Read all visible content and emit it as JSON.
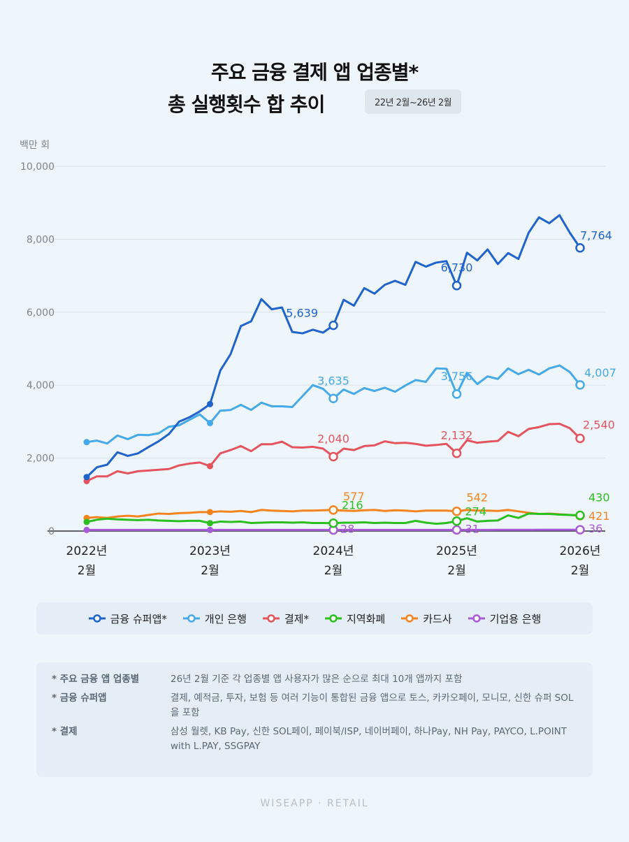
{
  "title": {
    "line1": "주요 금융 결제 앱 업종별*",
    "line2": "총 실행횟수 합 추이",
    "period": "22년 2월~26년 2월"
  },
  "brand": "WISEAPP · RETAIL",
  "notes": [
    {
      "key": "* 주요 금융 앱 업종별",
      "value": "26년 2월 기준 각 업종별 앱 사용자가 많은 순으로 최대 10개 앱까지 포함"
    },
    {
      "key": "* 금융 슈퍼앱",
      "value": "결제, 예적금, 투자, 보험 등 여러 기능이 통합된 금융 앱으로 토스, 카카오페이, 모니모, 신한 슈퍼 SOL을 포함"
    },
    {
      "key": "* 결제",
      "value": "삼성 월렛, KB Pay, 신한 SOL페이, 페이북/ISP, 네이버페이, 하나Pay, NH Pay, PAYCO, L.POINT with L.PAY, SSGPAY"
    }
  ],
  "chart_data": {
    "type": "line",
    "ylabel": "백만 회",
    "ylim": [
      0,
      10000
    ],
    "yticks": [
      "0",
      "2,000",
      "4,000",
      "6,000",
      "8,000",
      "10,000"
    ],
    "x_labels": [
      {
        "year": "2022년",
        "month": "2월",
        "index": 0
      },
      {
        "year": "2023년",
        "month": "2월",
        "index": 12
      },
      {
        "year": "2024년",
        "month": "2월",
        "index": 24
      },
      {
        "year": "2025년",
        "month": "2월",
        "index": 36
      },
      {
        "year": "2026년",
        "month": "2월",
        "index": 48
      }
    ],
    "series": [
      {
        "name": "금융 슈퍼앱*",
        "color": "#1f63cc",
        "values": [
          1480,
          1750,
          1820,
          2160,
          2060,
          2130,
          2300,
          2460,
          2660,
          3000,
          3120,
          3280,
          3480,
          4400,
          4850,
          5620,
          5750,
          6360,
          6080,
          6130,
          5460,
          5420,
          5520,
          5440,
          5639,
          6340,
          6180,
          6660,
          6510,
          6750,
          6860,
          6750,
          7380,
          7250,
          7360,
          7400,
          6730,
          7630,
          7420,
          7720,
          7320,
          7620,
          7460,
          8180,
          8600,
          8440,
          8660,
          8180,
          7764
        ],
        "labels": [
          {
            "index": 24,
            "text": "5,639"
          },
          {
            "index": 36,
            "text": "6,730"
          },
          {
            "index": 48,
            "text": "7,764"
          }
        ]
      },
      {
        "name": "개인 은행",
        "color": "#45a9ea",
        "values": [
          2440,
          2480,
          2400,
          2620,
          2520,
          2640,
          2630,
          2680,
          2860,
          2900,
          3050,
          3200,
          2960,
          3300,
          3320,
          3460,
          3320,
          3520,
          3420,
          3420,
          3400,
          3700,
          4000,
          3900,
          3635,
          3880,
          3760,
          3920,
          3840,
          3930,
          3820,
          3990,
          4140,
          4090,
          4460,
          4450,
          3756,
          4340,
          4030,
          4240,
          4170,
          4460,
          4300,
          4420,
          4290,
          4460,
          4540,
          4360,
          4007
        ],
        "labels": [
          {
            "index": 24,
            "text": "3,635"
          },
          {
            "index": 36,
            "text": "3,756"
          },
          {
            "index": 48,
            "text": "4,007"
          }
        ]
      },
      {
        "name": "결제*",
        "color": "#e5545c",
        "values": [
          1370,
          1500,
          1500,
          1640,
          1580,
          1640,
          1660,
          1680,
          1700,
          1800,
          1850,
          1880,
          1780,
          2130,
          2220,
          2330,
          2190,
          2380,
          2380,
          2450,
          2300,
          2290,
          2310,
          2260,
          2040,
          2260,
          2220,
          2330,
          2350,
          2460,
          2410,
          2420,
          2390,
          2340,
          2360,
          2390,
          2132,
          2490,
          2420,
          2450,
          2470,
          2720,
          2600,
          2800,
          2850,
          2930,
          2940,
          2820,
          2540
        ],
        "labels": [
          {
            "index": 24,
            "text": "2,040"
          },
          {
            "index": 36,
            "text": "2,132"
          },
          {
            "index": 48,
            "text": "2,540"
          }
        ]
      },
      {
        "name": "지역화폐",
        "color": "#2bbf1f",
        "values": [
          250,
          310,
          340,
          320,
          310,
          300,
          310,
          290,
          280,
          270,
          280,
          280,
          216,
          260,
          250,
          260,
          220,
          230,
          240,
          240,
          230,
          240,
          220,
          220,
          216,
          230,
          230,
          240,
          220,
          230,
          220,
          220,
          280,
          230,
          200,
          220,
          274,
          350,
          260,
          280,
          290,
          430,
          360,
          480,
          470,
          470,
          450,
          440,
          430
        ],
        "labels": [
          {
            "index": 24,
            "text": "216"
          },
          {
            "index": 36,
            "text": "274"
          },
          {
            "index": 48,
            "text": "430"
          }
        ]
      },
      {
        "name": "카드사",
        "color": "#f5841f",
        "values": [
          360,
          380,
          360,
          400,
          420,
          400,
          440,
          480,
          470,
          490,
          500,
          520,
          520,
          540,
          530,
          550,
          520,
          580,
          560,
          550,
          540,
          560,
          560,
          570,
          577,
          560,
          550,
          570,
          580,
          550,
          570,
          560,
          540,
          560,
          560,
          560,
          542,
          580,
          560,
          560,
          550,
          580,
          540,
          500,
          470,
          480,
          460,
          440,
          421
        ],
        "labels": [
          {
            "index": 24,
            "text": "577"
          },
          {
            "index": 36,
            "text": "542"
          },
          {
            "index": 48,
            "text": "421"
          }
        ]
      },
      {
        "name": "기업용 은행",
        "color": "#a85bd9",
        "values": [
          30,
          30,
          30,
          30,
          30,
          30,
          30,
          30,
          30,
          30,
          30,
          30,
          30,
          30,
          30,
          30,
          30,
          30,
          30,
          30,
          30,
          30,
          30,
          30,
          28,
          30,
          30,
          30,
          30,
          30,
          30,
          30,
          30,
          30,
          30,
          30,
          31,
          32,
          32,
          32,
          33,
          34,
          34,
          34,
          35,
          35,
          35,
          35,
          36
        ],
        "labels": [
          {
            "index": 24,
            "text": "28"
          },
          {
            "index": 36,
            "text": "31"
          },
          {
            "index": 48,
            "text": "36"
          }
        ]
      }
    ]
  }
}
